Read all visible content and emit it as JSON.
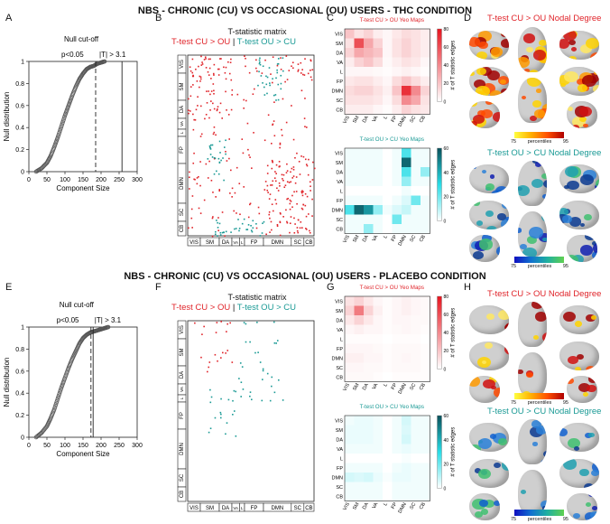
{
  "figure": {
    "row1_title": "NBS - CHRONIC (CU) VS OCCASIONAL (OU) USERS - THC CONDITION",
    "row2_title": "NBS - CHRONIC (CU) VS OCCASIONAL (OU) USERS - PLACEBO CONDITION",
    "letters": [
      "A",
      "B",
      "C",
      "D",
      "E",
      "F",
      "G",
      "H"
    ]
  },
  "colors": {
    "red": "#e0242a",
    "teal": "#1a9a95"
  },
  "null_plot": {
    "ylabel": "Null distribution",
    "xlabel": "Component Size",
    "yticks": [
      "0",
      "0.2",
      "0.4",
      "0.6",
      "0.8",
      "1"
    ],
    "xticks": [
      "0",
      "50",
      "100",
      "150",
      "200",
      "250",
      "300"
    ],
    "cutoff_label": "Null cut-off",
    "p_label": "p<0.05",
    "t_label": "|T| > 3.1"
  },
  "matrix": {
    "title": "T-statistic matrix",
    "legend_red": "T-test CU > OU",
    "sep": "|",
    "legend_teal": "T-test OU > CU",
    "networks": [
      "VIS",
      "SM",
      "DA",
      "VA",
      "L",
      "FP",
      "DMN",
      "SC",
      "CB"
    ]
  },
  "yeo": {
    "title_red": "T-test CU > OU Yeo Maps",
    "title_teal": "T-test OU > CU Yeo Maps",
    "cbar_label": "# of T statistic edges",
    "cbar_ticks": [
      "0",
      "20",
      "40",
      "60"
    ],
    "networks": [
      "VIS",
      "SM",
      "DA",
      "VA",
      "L",
      "FP",
      "DMN",
      "SC",
      "CB"
    ]
  },
  "nodal": {
    "title_red": "T-test CU > OU Nodal Degree",
    "title_teal": "T-test OU > CU Nodal Degree",
    "cbar_left": "75",
    "cbar_mid": "percentiles",
    "cbar_right": "95"
  },
  "chart_data": [
    {
      "type": "scatter",
      "title": "",
      "xlabel": "Component Size",
      "ylabel": "Null distribution",
      "xlim": [
        0,
        300
      ],
      "ylim": [
        0,
        1
      ],
      "note": "THC condition; null cut-off p<0.05 |T| > 3.1",
      "cutoff_x": 185,
      "observed_x": 258,
      "x": [
        20,
        35,
        50,
        60,
        70,
        80,
        90,
        100,
        110,
        120,
        130,
        140,
        150,
        160,
        170,
        180,
        190,
        200,
        210
      ],
      "y": [
        0.0,
        0.03,
        0.08,
        0.14,
        0.22,
        0.31,
        0.41,
        0.51,
        0.6,
        0.69,
        0.77,
        0.84,
        0.89,
        0.93,
        0.95,
        0.96,
        0.98,
        0.99,
        1.0
      ]
    },
    {
      "type": "heatmap",
      "title": "T-test CU > OU Yeo Maps",
      "categories": [
        "VIS",
        "SM",
        "DA",
        "VA",
        "L",
        "FP",
        "DMN",
        "SC",
        "CB"
      ],
      "zlim": [
        0,
        80
      ],
      "values": [
        [
          20,
          10,
          15,
          6,
          3,
          8,
          12,
          10,
          6
        ],
        [
          10,
          60,
          30,
          15,
          3,
          10,
          15,
          10,
          6
        ],
        [
          15,
          30,
          25,
          20,
          3,
          10,
          15,
          10,
          6
        ],
        [
          6,
          15,
          20,
          12,
          2,
          6,
          10,
          8,
          3
        ],
        [
          3,
          3,
          3,
          2,
          1,
          3,
          5,
          3,
          1
        ],
        [
          8,
          10,
          10,
          6,
          3,
          12,
          20,
          12,
          6
        ],
        [
          12,
          15,
          15,
          10,
          5,
          20,
          70,
          40,
          15
        ],
        [
          10,
          10,
          10,
          8,
          3,
          12,
          40,
          30,
          10
        ],
        [
          6,
          6,
          6,
          3,
          1,
          6,
          15,
          10,
          8
        ]
      ]
    },
    {
      "type": "heatmap",
      "title": "T-test OU > CU Yeo Maps",
      "categories": [
        "VIS",
        "SM",
        "DA",
        "VA",
        "L",
        "FP",
        "DMN",
        "SC",
        "CB"
      ],
      "zlim": [
        0,
        60
      ],
      "values": [
        [
          2,
          2,
          2,
          2,
          0,
          2,
          25,
          2,
          2
        ],
        [
          2,
          2,
          2,
          2,
          0,
          2,
          55,
          2,
          2
        ],
        [
          2,
          2,
          2,
          2,
          0,
          2,
          25,
          2,
          15
        ],
        [
          2,
          2,
          2,
          2,
          0,
          2,
          15,
          2,
          2
        ],
        [
          0,
          0,
          0,
          0,
          0,
          0,
          2,
          0,
          0
        ],
        [
          2,
          2,
          2,
          2,
          0,
          2,
          5,
          20,
          2
        ],
        [
          25,
          55,
          45,
          15,
          2,
          5,
          8,
          2,
          2
        ],
        [
          2,
          2,
          2,
          2,
          0,
          20,
          2,
          2,
          2
        ],
        [
          2,
          2,
          15,
          2,
          0,
          2,
          2,
          2,
          2
        ]
      ]
    },
    {
      "type": "scatter",
      "title": "",
      "xlabel": "Component Size",
      "ylabel": "Null distribution",
      "xlim": [
        0,
        300
      ],
      "ylim": [
        0,
        1
      ],
      "note": "Placebo condition; null cut-off p<0.05 |T| > 3.1",
      "cutoff_x": 172,
      "observed_x": 178,
      "x": [
        20,
        35,
        50,
        60,
        70,
        80,
        90,
        100,
        110,
        120,
        130,
        140,
        150,
        160,
        170,
        180,
        190,
        200,
        210,
        220
      ],
      "y": [
        0.0,
        0.04,
        0.1,
        0.17,
        0.25,
        0.35,
        0.45,
        0.54,
        0.63,
        0.71,
        0.78,
        0.85,
        0.9,
        0.93,
        0.95,
        0.96,
        0.97,
        0.98,
        0.99,
        1.0
      ]
    },
    {
      "type": "heatmap",
      "title": "T-test CU > OU Yeo Maps",
      "categories": [
        "VIS",
        "SM",
        "DA",
        "VA",
        "L",
        "FP",
        "DMN",
        "SC",
        "CB"
      ],
      "zlim": [
        0,
        80
      ],
      "values": [
        [
          10,
          15,
          8,
          3,
          1,
          3,
          5,
          3,
          2
        ],
        [
          15,
          45,
          15,
          5,
          1,
          3,
          5,
          3,
          2
        ],
        [
          8,
          15,
          8,
          3,
          1,
          3,
          3,
          2,
          2
        ],
        [
          3,
          5,
          3,
          3,
          1,
          2,
          3,
          2,
          1
        ],
        [
          1,
          1,
          1,
          1,
          0,
          1,
          1,
          1,
          0
        ],
        [
          3,
          3,
          3,
          2,
          1,
          2,
          2,
          2,
          1
        ],
        [
          5,
          5,
          3,
          3,
          1,
          2,
          3,
          2,
          1
        ],
        [
          3,
          3,
          2,
          2,
          1,
          2,
          2,
          2,
          1
        ],
        [
          2,
          2,
          2,
          1,
          0,
          1,
          1,
          1,
          1
        ]
      ]
    },
    {
      "type": "heatmap",
      "title": "T-test OU > CU Yeo Maps",
      "categories": [
        "VIS",
        "SM",
        "DA",
        "VA",
        "L",
        "FP",
        "DMN",
        "SC",
        "CB"
      ],
      "zlim": [
        0,
        60
      ],
      "values": [
        [
          2,
          3,
          3,
          2,
          0,
          2,
          6,
          2,
          2
        ],
        [
          3,
          3,
          3,
          2,
          0,
          2,
          5,
          2,
          2
        ],
        [
          3,
          3,
          3,
          2,
          0,
          2,
          6,
          2,
          2
        ],
        [
          2,
          2,
          2,
          2,
          0,
          2,
          3,
          2,
          2
        ],
        [
          0,
          0,
          0,
          0,
          0,
          0,
          1,
          0,
          0
        ],
        [
          2,
          2,
          2,
          2,
          0,
          2,
          3,
          2,
          2
        ],
        [
          6,
          5,
          6,
          3,
          1,
          3,
          3,
          2,
          2
        ],
        [
          2,
          2,
          2,
          2,
          0,
          2,
          2,
          2,
          2
        ],
        [
          2,
          2,
          2,
          2,
          0,
          2,
          2,
          2,
          2
        ]
      ]
    }
  ]
}
